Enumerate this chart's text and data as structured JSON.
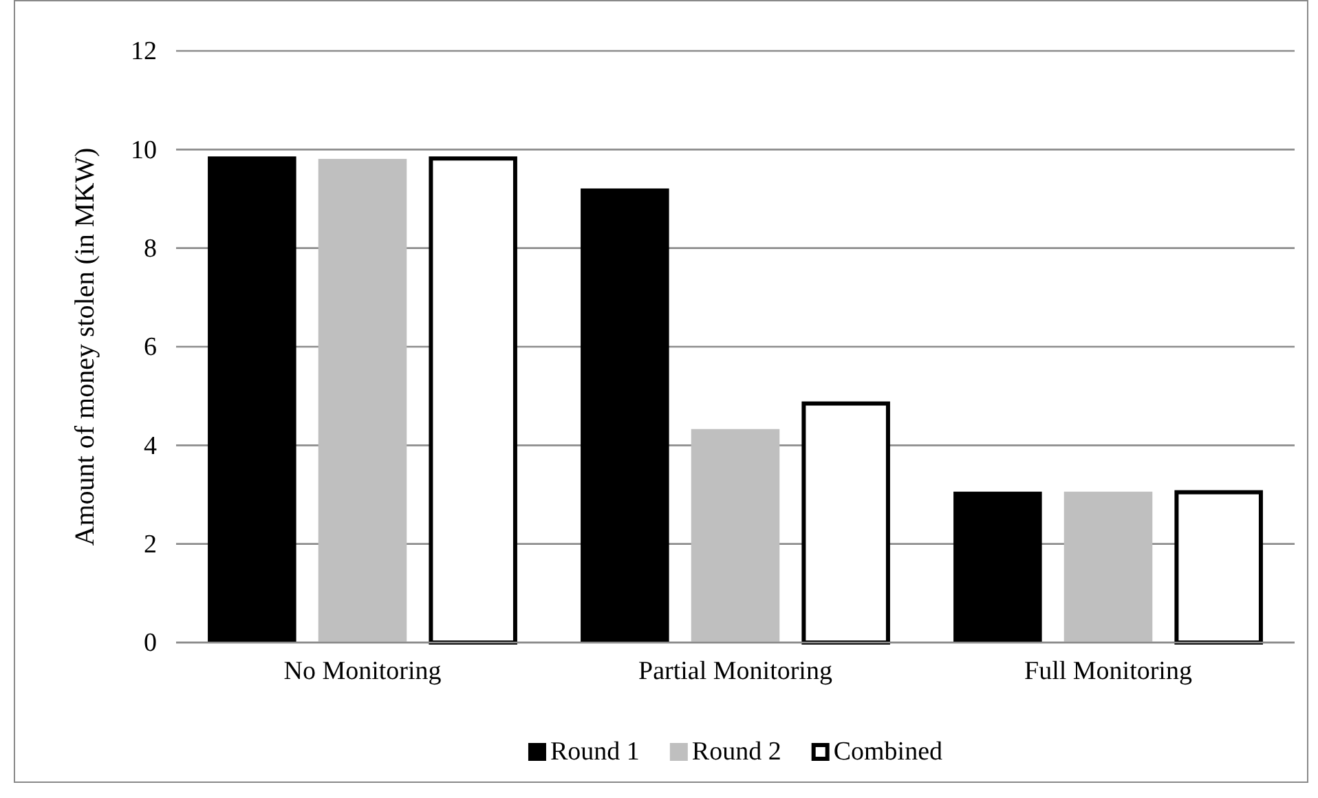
{
  "chart_data": {
    "type": "bar",
    "ylabel": "Amount of money stolen (in MKW)",
    "categories": [
      "No Monitoring",
      "Partial Monitoring",
      "Full Monitoring"
    ],
    "series": [
      {
        "name": "Round 1",
        "color": "#000000",
        "values": [
          9.86,
          9.21,
          3.06
        ]
      },
      {
        "name": "Round 2",
        "color": "#bfbfbf",
        "values": [
          9.81,
          4.33,
          3.06
        ]
      },
      {
        "name": "Combined",
        "color": "#ffffff",
        "values": [
          9.86,
          4.89,
          3.09
        ]
      }
    ],
    "ylim": [
      0,
      12
    ],
    "yticks": [
      0,
      2,
      4,
      6,
      8,
      10,
      12
    ],
    "grid": "y",
    "legend": "bottom"
  }
}
